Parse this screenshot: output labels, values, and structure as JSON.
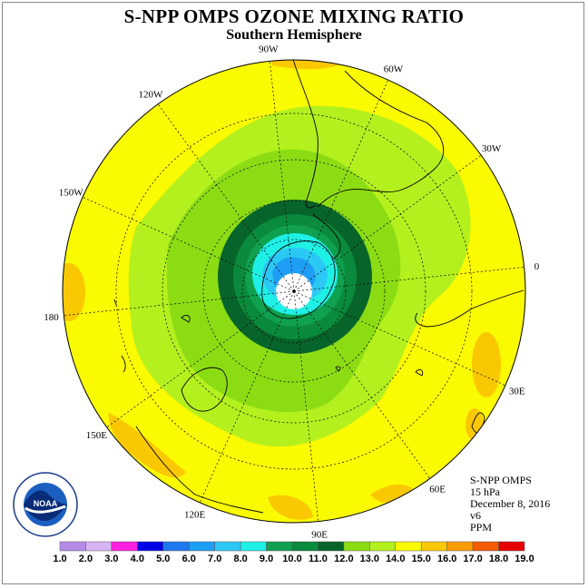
{
  "title": "S-NPP OMPS OZONE MIXING RATIO",
  "subtitle": "Southern Hemisphere",
  "info": {
    "instrument": "S-NPP OMPS",
    "level": "15 hPa",
    "date": "December 8, 2016",
    "version": "v6",
    "units": "PPM"
  },
  "logo": {
    "text": "NOAA",
    "ring_text": "NATIONAL OCEANIC AND ATMOSPHERIC ADMINISTRATION · U.S. DEPARTMENT OF COMMERCE"
  },
  "longitude_labels": [
    {
      "text": "90W",
      "lon": -90
    },
    {
      "text": "60W",
      "lon": -60
    },
    {
      "text": "30W",
      "lon": -30
    },
    {
      "text": "0",
      "lon": 0
    },
    {
      "text": "30E",
      "lon": 30
    },
    {
      "text": "60E",
      "lon": 60
    },
    {
      "text": "90E",
      "lon": 90
    },
    {
      "text": "120E",
      "lon": 120
    },
    {
      "text": "150E",
      "lon": 150
    },
    {
      "text": "180",
      "lon": 180
    },
    {
      "text": "150W",
      "lon": -150
    },
    {
      "text": "120W",
      "lon": -120
    }
  ],
  "colorbar": {
    "ticks": [
      "1.0",
      "2.0",
      "3.0",
      "4.0",
      "5.0",
      "6.0",
      "7.0",
      "8.0",
      "9.0",
      "10.0",
      "11.0",
      "12.0",
      "13.0",
      "14.0",
      "15.0",
      "16.0",
      "17.0",
      "18.0",
      "19.0"
    ],
    "colors": [
      "#b58ae6",
      "#d6b4f2",
      "#ff1fe0",
      "#0000e8",
      "#1f78f0",
      "#1e9ff5",
      "#2cc8f5",
      "#1ff0e6",
      "#0fa050",
      "#0a8a3c",
      "#07642a",
      "#8cdc14",
      "#b4f01e",
      "#fafa00",
      "#fac800",
      "#fa9b00",
      "#f55a00",
      "#e60000",
      "#8c5a3c"
    ]
  }
}
